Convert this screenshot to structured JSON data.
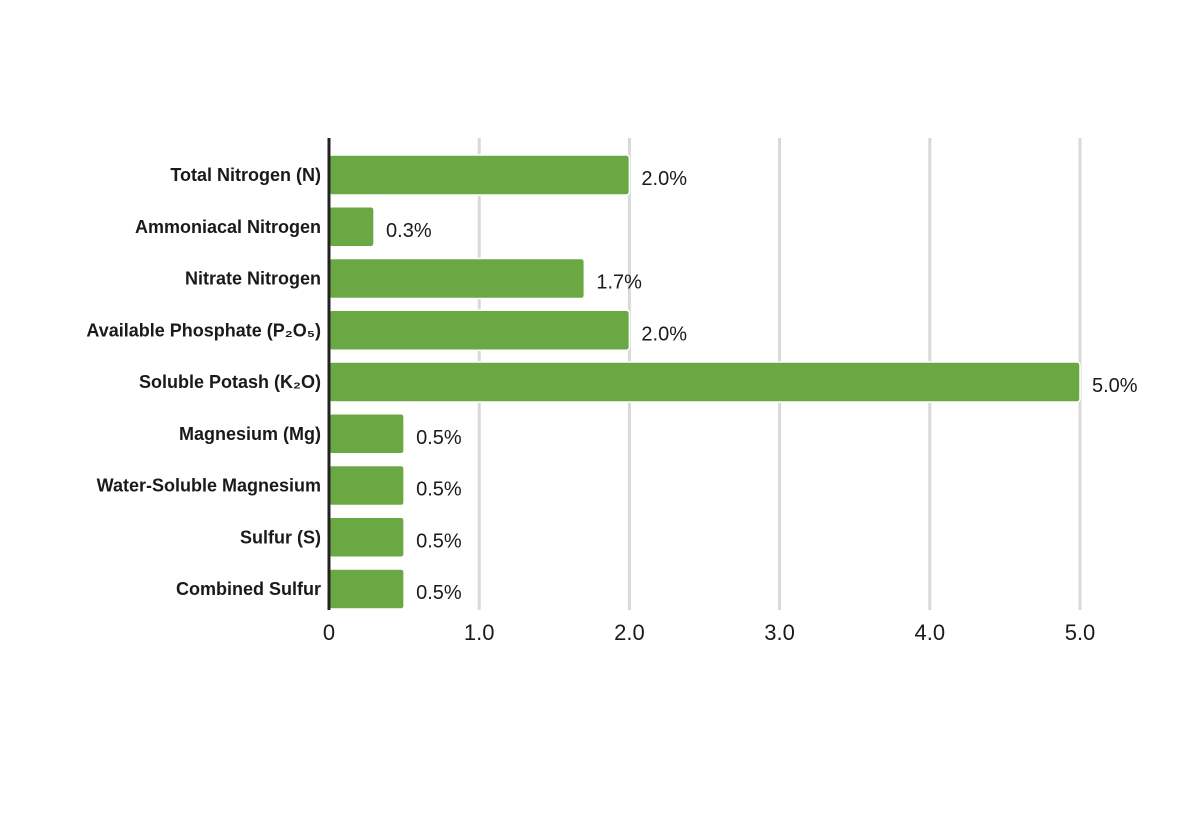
{
  "chart_data": {
    "type": "bar",
    "orientation": "horizontal",
    "categories": [
      "Total Nitrogen (N)",
      "Ammoniacal Nitrogen",
      "Nitrate Nitrogen",
      "Available Phosphate (P₂O₅)",
      "Soluble Potash (K₂O)",
      "Magnesium (Mg)",
      "Water-Soluble Magnesium",
      "Sulfur (S)",
      "Combined Sulfur"
    ],
    "values": [
      2.0,
      0.3,
      1.7,
      2.0,
      5.0,
      0.5,
      0.5,
      0.5,
      0.5
    ],
    "value_labels": [
      "2.0%",
      "0.3%",
      "1.7%",
      "2.0%",
      "5.0%",
      "0.5%",
      "0.5%",
      "0.5%",
      "0.5%"
    ],
    "x_ticks": [
      0,
      1,
      2,
      3,
      4,
      5
    ],
    "x_tick_labels": [
      "0",
      "1.0",
      "2.0",
      "3.0",
      "4.0",
      "5.0"
    ],
    "xlim": [
      0,
      5
    ],
    "grid": true,
    "legend": "none",
    "colors": {
      "bar": "#6aa843",
      "grid": "#d9d9d9",
      "axis": "#222222",
      "text": "#1a1a1a"
    }
  }
}
